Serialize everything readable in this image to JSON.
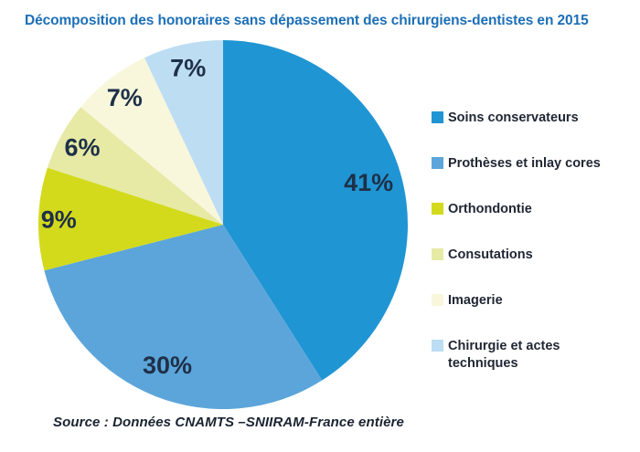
{
  "title": "Décomposition des honoraires sans dépassement des chirurgiens-dentistes en 2015",
  "source": "Source : Données CNAMTS –SNIIRAM-France entière",
  "colors": {
    "title_text": "#1C6FB7",
    "pie_label_text": "#1E3048",
    "legend_text": "#1F2633",
    "background": "#FFFFFF"
  },
  "chart_data": {
    "type": "pie",
    "title": "Décomposition des honoraires sans dépassement des chirurgiens-dentistes en 2015",
    "label_format": "percent",
    "start_angle_deg": 0,
    "direction": "clockwise",
    "legend_position": "right",
    "slices": [
      {
        "label": "Soins conservateurs",
        "value": 41,
        "color": "#2095D3",
        "label_r": 0.82,
        "legend_lines": [
          "Soins conservateurs"
        ]
      },
      {
        "label": "Prothèses et inlay cores",
        "value": 30,
        "color": "#5CA5DA",
        "label_r": 0.82,
        "legend_lines": [
          "Prothèses et inlay cores"
        ]
      },
      {
        "label": "Orthondontie",
        "value": 9,
        "color": "#D3DA1C",
        "label_r": 0.89,
        "legend_lines": [
          "Orthondontie"
        ]
      },
      {
        "label": "Consutations",
        "value": 6,
        "color": "#E6EAA5",
        "label_r": 0.87,
        "legend_lines": [
          "Consutations"
        ]
      },
      {
        "label": "Imagerie",
        "value": 7,
        "color": "#F8F7DC",
        "label_r": 0.87,
        "legend_lines": [
          "Imagerie"
        ]
      },
      {
        "label": "Chirurgie et actes techniques",
        "value": 7,
        "color": "#BDDDF3",
        "label_r": 0.87,
        "legend_lines": [
          "Chirurgie et actes",
          "techniques"
        ]
      }
    ]
  }
}
